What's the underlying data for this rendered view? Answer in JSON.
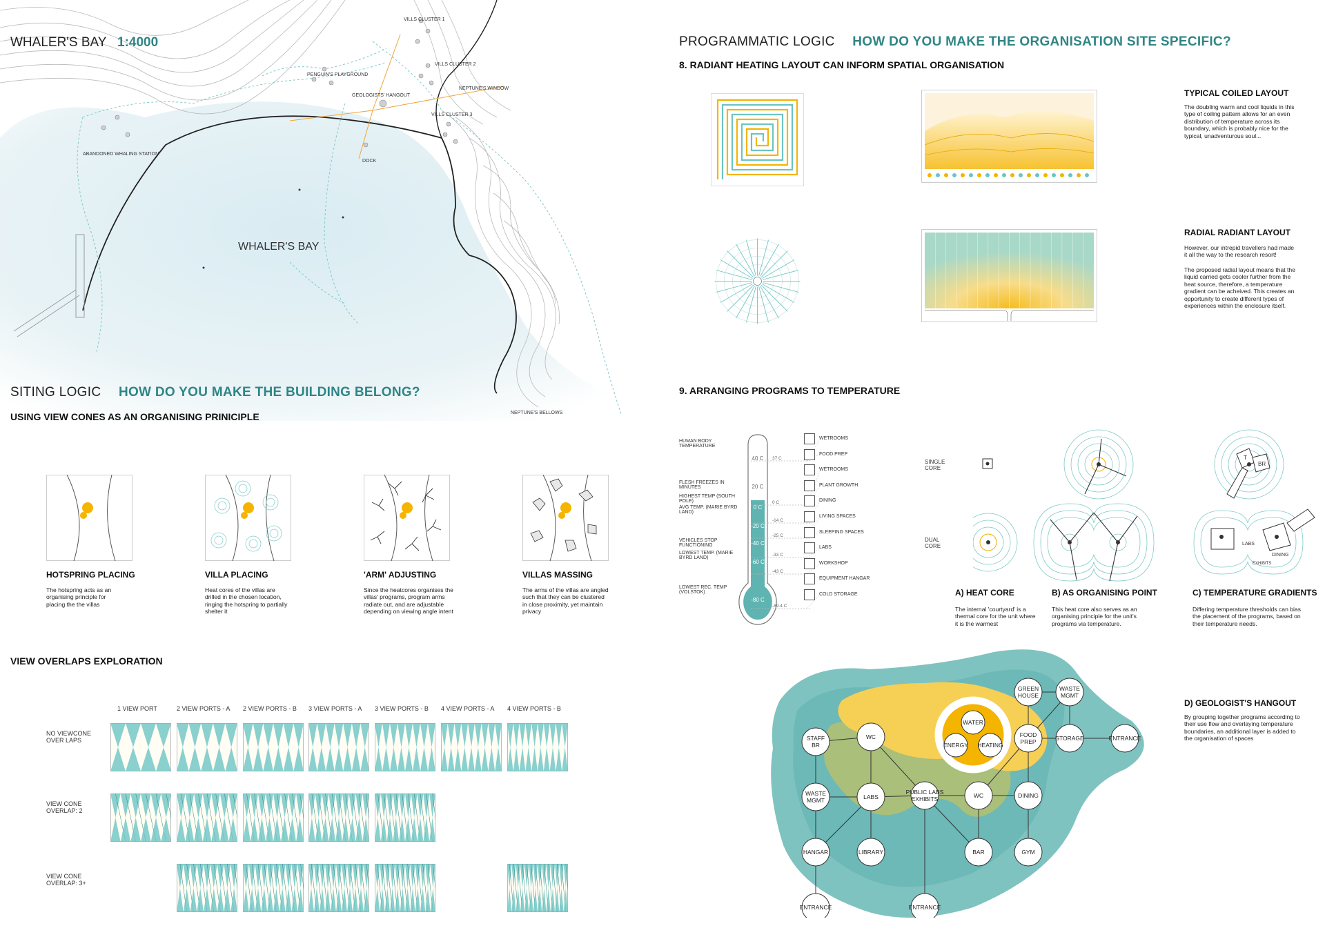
{
  "map": {
    "title": "WHALER'S BAY",
    "scale": "1:4000",
    "bay_label": "WHALER'S BAY",
    "labels": {
      "villa_cluster_1": "VILLS CLUSTER 1",
      "villa_cluster_2": "VILLS CLUSTER 2",
      "villa_cluster_3": "VILLS CLUSTER 3",
      "penguins": "PENGUIN'S PLAYGROUND",
      "geologists": "GEOLOGISTS' HANGOUT",
      "neptunes_window": "NEPTUNE'S WINDOW",
      "whaling": "ABANDONED WHALING STATION",
      "dock": "DOCK",
      "bellows": "NEPTUNE'S BELLOWS"
    }
  },
  "siting": {
    "title": "SITING LOGIC",
    "question": "HOW DO YOU MAKE THE BUILDING BELONG?",
    "subtitle": "USING VIEW CONES AS AN ORGANISING PRINICIPLE",
    "steps": [
      {
        "label": "HOTSPRING PLACING",
        "text": "The hotspring acts as an organising principle for placing the the villas"
      },
      {
        "label": "VILLA PLACING",
        "text": "Heat cores of the villas are drilled in the chosen location, ringing the hotspring to partially shelter it"
      },
      {
        "label": "'ARM' ADJUSTING",
        "text": "Since the heatcores organises the villas' programs, program arms radiate out, and are adjustable depending on viewing angle intent"
      },
      {
        "label": "VILLAS MASSING",
        "text": "The arms of the villas are angled such that they can be clustered in close proximity, yet maintain privacy"
      }
    ]
  },
  "overlaps": {
    "title": "VIEW OVERLAPS EXPLORATION",
    "columns": [
      "1 VIEW PORT",
      "2 VIEW PORTS - A",
      "2 VIEW PORTS - B",
      "3 VIEW PORTS - A",
      "3 VIEW PORTS - B",
      "4 VIEW PORTS - A",
      "4 VIEW PORTS - B"
    ],
    "rows": [
      {
        "label": "NO VIEWCONE OVER LAPS"
      },
      {
        "label": "VIEW CONE OVERLAP: 2"
      },
      {
        "label": "VIEW CONE OVERLAP: 3+"
      }
    ]
  },
  "programmatic": {
    "title": "PROGRAMMATIC LOGIC",
    "question": "HOW DO YOU MAKE THE ORGANISATION SITE SPECIFIC?",
    "section8": "8. RADIANT HEATING LAYOUT CAN INFORM SPATIAL ORGANISATION",
    "coiled_title": "TYPICAL COILED LAYOUT",
    "coiled_text": "The doubling warm and cool liquids in this type of coiling pattern allows for an even distribution of temperature across its boundary, which is probably nice for the typical, unadventurous soul...",
    "radial_title": "RADIAL RADIANT LAYOUT",
    "radial_text1": "However, our intrepid travellers had made it all the way to the research resort!",
    "radial_text2": "The proposed radial layout means that the liquid carried gets cooler further from the heat source, therefore, a temperature gradient can be acheived. This creates an opportunity to create different types of experiences within the enclosure itself.",
    "section9": "9. ARRANGING PROGRAMS TO TEMPERATURE"
  },
  "thermometer": {
    "left_labels": [
      {
        "text": "HUMAN BODY TEMPERATURE"
      },
      {
        "text": "FLESH FREEZES IN MINUTES"
      },
      {
        "text": "HIGHEST TEMP (SOUTH POLE)"
      },
      {
        "text": "AVG TEMP. (MARIE BYRD LAND)"
      },
      {
        "text": "VEHICLES STOP FUNCTIONING"
      },
      {
        "text": "LOWEST TEMP. (MARIE BYRD LAND)"
      },
      {
        "text": "LOWEST REC. TEMP (VOLSTOK)"
      }
    ],
    "bulb_ticks": [
      "40 C",
      "20 C",
      "0 C",
      "-20 C",
      "-40 C",
      "-60 C",
      "-80 C"
    ],
    "dash_values": [
      "37 C",
      "0 C",
      "-14 C",
      "-25 C",
      "-33 C",
      "-43 C",
      "-89.4 C"
    ],
    "programs": [
      "WETROOMS",
      "FOOD PREP",
      "WETROOMS",
      "PLANT GROWTH",
      "DINING",
      "LIVING SPACES",
      "SLEEPING SPACES",
      "LABS",
      "WORKSHOP",
      "EQUIPMENT HANGAR",
      "COLD STORAGE"
    ]
  },
  "cores": {
    "single_label": "SINGLE CORE",
    "dual_label": "DUAL CORE",
    "a_title": "A) HEAT CORE",
    "a_text": "The internal 'courtyard' is a thermal core for the unit where it is the warmest",
    "b_title": "B) AS ORGANISING POINT",
    "b_text": "This heat core also serves as an organising principle for the unit's programs via temperature.",
    "c_title": "C) TEMPERATURE GRADIENTS",
    "c_text": "Differing temperature thresholds can bias the placement of the programs, based on their temperature needs.",
    "c_labels": {
      "t": "T",
      "br": "BR",
      "labs": "LABS",
      "dining": "DINING",
      "exhibits": "EXHIBITS"
    }
  },
  "hangout": {
    "title": "D) GEOLOGIST'S HANGOUT",
    "text": "By grouping together programs according to their use flow and overlaying temperature boundaries, an additional layer is added to the organisation of spaces",
    "nodes": {
      "water": "WATER",
      "energy": "ENERGY",
      "heating": "HEATING",
      "staff_br_1": "STAFF",
      "staff_br_2": "BR",
      "wc1": "WC",
      "labs": "LABS",
      "public_1": "PUBLIC LABS",
      "public_2": "EXHIBITS",
      "wc2": "WC",
      "green_1": "GREEN",
      "green_2": "HOUSE",
      "waste1_1": "WASTE",
      "waste1_2": "MGMT",
      "food_1": "FOOD",
      "food_2": "PREP",
      "storage": "STORAGE",
      "entrance_r": "ENTRANCE",
      "waste2_1": "WASTE",
      "waste2_2": "MGMT",
      "dining": "DINING",
      "hangar": "HANGAR",
      "library": "LIBRARY",
      "bar": "BAR",
      "gym": "GYM",
      "entrance1": "ENTRANCE",
      "entrance2": "ENTRANCE"
    }
  },
  "colors": {
    "teal": "#6cc4c4",
    "teal_dark": "#2f8585",
    "yellow": "#f5b400",
    "olive": "#a9bf7a"
  }
}
